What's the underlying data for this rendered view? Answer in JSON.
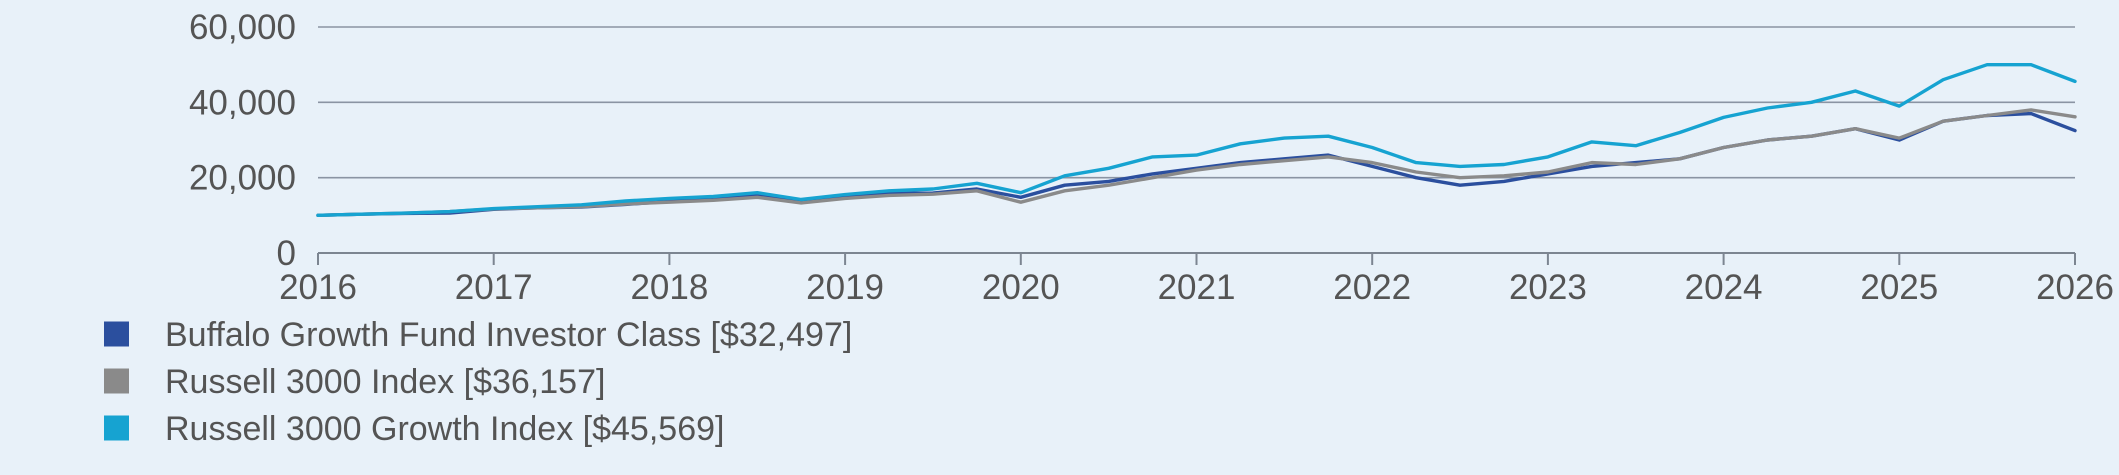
{
  "chart_data": {
    "type": "line",
    "title": "",
    "xlabel": "",
    "ylabel": "",
    "xlim": [
      2016,
      2026
    ],
    "ylim": [
      0,
      60000
    ],
    "x_ticks": [
      2016,
      2017,
      2018,
      2019,
      2020,
      2021,
      2022,
      2023,
      2024,
      2025,
      2026
    ],
    "x_tick_labels": [
      "2016",
      "2017",
      "2018",
      "2019",
      "2020",
      "2021",
      "2022",
      "2023",
      "2024",
      "2025",
      "2026"
    ],
    "y_ticks": [
      0,
      20000,
      40000,
      60000
    ],
    "y_tick_labels": [
      "0",
      "20,000",
      "40,000",
      "60,000"
    ],
    "grid": true,
    "legend_position": "bottom-left",
    "series": [
      {
        "name": "Buffalo Growth Fund Investor Class [$32,497]",
        "color": "#2b4f9e",
        "points": [
          [
            2016.0,
            10000
          ],
          [
            2016.25,
            10300
          ],
          [
            2016.5,
            10500
          ],
          [
            2016.75,
            10600
          ],
          [
            2017.0,
            11600
          ],
          [
            2017.25,
            12000
          ],
          [
            2017.5,
            12200
          ],
          [
            2017.75,
            12900
          ],
          [
            2018.0,
            13700
          ],
          [
            2018.25,
            14200
          ],
          [
            2018.5,
            15300
          ],
          [
            2018.75,
            13500
          ],
          [
            2019.0,
            14700
          ],
          [
            2019.25,
            15800
          ],
          [
            2019.5,
            15900
          ],
          [
            2019.75,
            17000
          ],
          [
            2020.0,
            14800
          ],
          [
            2020.25,
            18000
          ],
          [
            2020.5,
            19000
          ],
          [
            2020.75,
            21000
          ],
          [
            2021.0,
            22500
          ],
          [
            2021.25,
            24000
          ],
          [
            2021.5,
            25000
          ],
          [
            2021.75,
            26000
          ],
          [
            2022.0,
            23000
          ],
          [
            2022.25,
            20000
          ],
          [
            2022.5,
            18000
          ],
          [
            2022.75,
            19000
          ],
          [
            2023.0,
            21000
          ],
          [
            2023.25,
            23000
          ],
          [
            2023.5,
            24000
          ],
          [
            2023.75,
            25000
          ],
          [
            2024.0,
            28000
          ],
          [
            2024.25,
            30000
          ],
          [
            2024.5,
            31000
          ],
          [
            2024.75,
            33000
          ],
          [
            2025.0,
            30000
          ],
          [
            2025.25,
            35000
          ],
          [
            2025.5,
            36500
          ],
          [
            2025.75,
            37000
          ],
          [
            2026.0,
            32497
          ]
        ]
      },
      {
        "name": "Russell 3000 Index [$36,157]",
        "color": "#8a8a8a",
        "points": [
          [
            2016.0,
            10000
          ],
          [
            2016.25,
            10300
          ],
          [
            2016.5,
            10600
          ],
          [
            2016.75,
            11000
          ],
          [
            2017.0,
            11700
          ],
          [
            2017.25,
            12000
          ],
          [
            2017.5,
            12300
          ],
          [
            2017.75,
            13000
          ],
          [
            2018.0,
            13500
          ],
          [
            2018.25,
            14000
          ],
          [
            2018.5,
            14800
          ],
          [
            2018.75,
            13300
          ],
          [
            2019.0,
            14500
          ],
          [
            2019.25,
            15300
          ],
          [
            2019.5,
            15600
          ],
          [
            2019.75,
            16500
          ],
          [
            2020.0,
            13500
          ],
          [
            2020.25,
            16500
          ],
          [
            2020.5,
            18000
          ],
          [
            2020.75,
            20000
          ],
          [
            2021.0,
            22000
          ],
          [
            2021.25,
            23500
          ],
          [
            2021.5,
            24500
          ],
          [
            2021.75,
            25500
          ],
          [
            2022.0,
            24000
          ],
          [
            2022.25,
            21500
          ],
          [
            2022.5,
            20000
          ],
          [
            2022.75,
            20500
          ],
          [
            2023.0,
            21500
          ],
          [
            2023.25,
            24000
          ],
          [
            2023.5,
            23500
          ],
          [
            2023.75,
            25000
          ],
          [
            2024.0,
            28000
          ],
          [
            2024.25,
            30000
          ],
          [
            2024.5,
            31000
          ],
          [
            2024.75,
            33000
          ],
          [
            2025.0,
            30500
          ],
          [
            2025.25,
            35000
          ],
          [
            2025.5,
            36500
          ],
          [
            2025.75,
            38000
          ],
          [
            2026.0,
            36157
          ]
        ]
      },
      {
        "name": "Russell 3000 Growth Index [$45,569]",
        "color": "#16a3d1",
        "points": [
          [
            2016.0,
            10000
          ],
          [
            2016.25,
            10300
          ],
          [
            2016.5,
            10600
          ],
          [
            2016.75,
            11000
          ],
          [
            2017.0,
            11800
          ],
          [
            2017.25,
            12300
          ],
          [
            2017.5,
            12800
          ],
          [
            2017.75,
            13800
          ],
          [
            2018.0,
            14500
          ],
          [
            2018.25,
            15000
          ],
          [
            2018.5,
            16000
          ],
          [
            2018.75,
            14200
          ],
          [
            2019.0,
            15500
          ],
          [
            2019.25,
            16500
          ],
          [
            2019.5,
            17000
          ],
          [
            2019.75,
            18500
          ],
          [
            2020.0,
            16000
          ],
          [
            2020.25,
            20500
          ],
          [
            2020.5,
            22500
          ],
          [
            2020.75,
            25500
          ],
          [
            2021.0,
            26000
          ],
          [
            2021.25,
            29000
          ],
          [
            2021.5,
            30500
          ],
          [
            2021.75,
            31000
          ],
          [
            2022.0,
            28000
          ],
          [
            2022.25,
            24000
          ],
          [
            2022.5,
            23000
          ],
          [
            2022.75,
            23500
          ],
          [
            2023.0,
            25500
          ],
          [
            2023.25,
            29500
          ],
          [
            2023.5,
            28500
          ],
          [
            2023.75,
            32000
          ],
          [
            2024.0,
            36000
          ],
          [
            2024.25,
            38500
          ],
          [
            2024.5,
            40000
          ],
          [
            2024.75,
            43000
          ],
          [
            2025.0,
            39000
          ],
          [
            2025.25,
            46000
          ],
          [
            2025.5,
            50000
          ],
          [
            2025.75,
            50000
          ],
          [
            2026.0,
            45569
          ]
        ]
      }
    ]
  }
}
